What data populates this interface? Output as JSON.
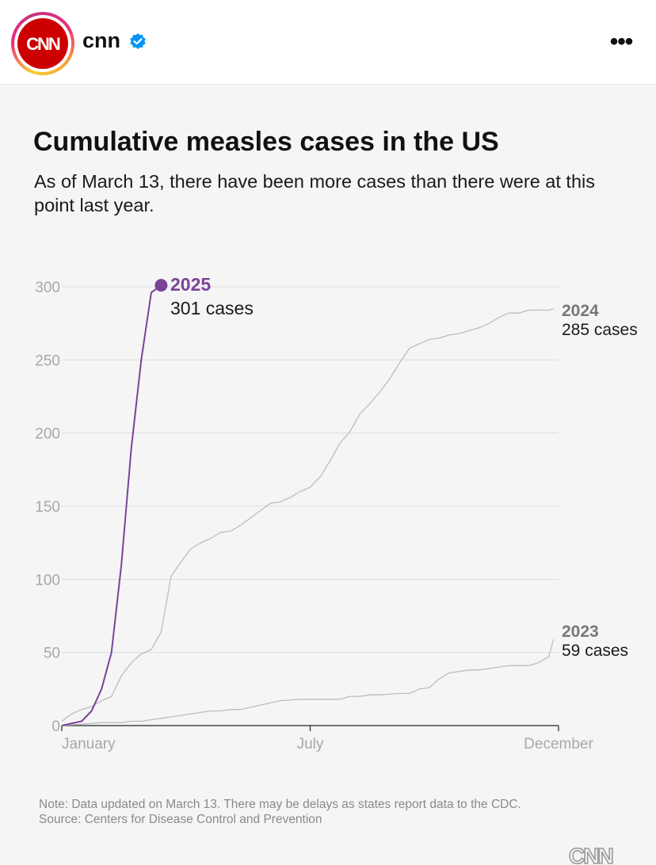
{
  "header": {
    "account_name": "cnn",
    "logo_text": "CNN",
    "more_label": "•••",
    "verified": true
  },
  "colors": {
    "series_2025": "#7b4397",
    "series_other": "#bdbdbd",
    "label_2024": "#777777",
    "brand": "#cc0000"
  },
  "chart_data": {
    "type": "line",
    "title": "Cumulative measles cases in the US",
    "subtitle": "As of March 13, there have been more cases than there were at this point last year.",
    "xlabel": "",
    "ylabel": "",
    "xlim": [
      0,
      50
    ],
    "ylim": [
      0,
      300
    ],
    "y_ticks": [
      0,
      50,
      100,
      150,
      200,
      250,
      300
    ],
    "x_ticks": [
      {
        "label": "January",
        "week": 0
      },
      {
        "label": "July",
        "week": 25
      },
      {
        "label": "December",
        "week": 50
      }
    ],
    "x_unit": "week of year",
    "series": [
      {
        "name": "2025",
        "label": "2025",
        "sublabel": "301 cases",
        "color": "#7b4397",
        "highlight": true,
        "x": [
          0,
          2,
          3,
          4,
          5,
          6,
          7,
          8,
          9,
          10
        ],
        "y": [
          0,
          3,
          10,
          25,
          50,
          110,
          190,
          250,
          296,
          301
        ]
      },
      {
        "name": "2024",
        "label": "2024",
        "sublabel": "285 cases",
        "color": "#bdbdbd",
        "x": [
          0,
          1,
          2,
          3,
          4,
          5,
          6,
          7,
          8,
          9,
          10,
          11,
          12,
          13,
          14,
          15,
          16,
          17,
          18,
          19,
          20,
          21,
          22,
          23,
          24,
          25,
          26,
          27,
          28,
          29,
          30,
          31,
          32,
          33,
          34,
          35,
          36,
          37,
          38,
          39,
          40,
          41,
          42,
          43,
          44,
          45,
          46,
          47,
          48,
          49,
          49.5
        ],
        "y": [
          3,
          8,
          11,
          13,
          17,
          20,
          34,
          43,
          49,
          52,
          64,
          102,
          112,
          121,
          125,
          128,
          132,
          133,
          137,
          142,
          147,
          152,
          153,
          156,
          160,
          163,
          170,
          181,
          193,
          201,
          213,
          220,
          228,
          237,
          248,
          258,
          261,
          264,
          265,
          267,
          268,
          270,
          272,
          275,
          279,
          282,
          282,
          284,
          284,
          284,
          285
        ]
      },
      {
        "name": "2023",
        "label": "2023",
        "sublabel": "59 cases",
        "color": "#bdbdbd",
        "x": [
          0,
          2,
          4,
          6,
          7,
          8,
          10,
          12,
          13,
          15,
          16,
          17,
          18,
          20,
          22,
          24,
          25,
          26,
          27,
          28,
          29,
          30,
          31,
          32,
          34,
          35,
          36,
          37,
          38,
          39,
          40,
          41,
          42,
          44,
          45,
          46,
          47,
          48,
          49,
          49.5
        ],
        "y": [
          0,
          1,
          2,
          2,
          3,
          3,
          5,
          7,
          8,
          10,
          10,
          11,
          11,
          14,
          17,
          18,
          18,
          18,
          18,
          18,
          20,
          20,
          21,
          21,
          22,
          22,
          25,
          26,
          32,
          36,
          37,
          38,
          38,
          40,
          41,
          41,
          41,
          43,
          47,
          59
        ]
      }
    ]
  },
  "footnote": {
    "note": "Note: Data updated on March 13. There may be delays as states report data to the CDC.",
    "source": "Source: Centers for Disease Control and Prevention"
  },
  "footer": {
    "logo_text": "CNN"
  }
}
